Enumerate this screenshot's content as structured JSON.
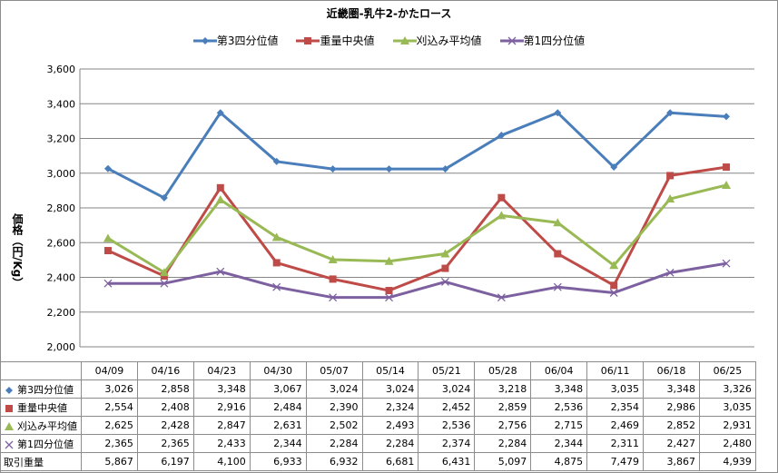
{
  "chart_data": {
    "type": "line",
    "title": "近畿圏-乳牛2-かたロース",
    "ylabel": "価格（円/Kg）",
    "xlabel": "",
    "ylim": [
      2000,
      3600
    ],
    "yticks": [
      "2,000",
      "2,200",
      "2,400",
      "2,600",
      "2,800",
      "3,000",
      "3,200",
      "3,400",
      "3,600"
    ],
    "grid": true,
    "legend_position": "top",
    "categories": [
      "04/09",
      "04/16",
      "04/23",
      "04/30",
      "05/07",
      "05/14",
      "05/21",
      "05/28",
      "06/04",
      "06/11",
      "06/18",
      "06/25"
    ],
    "series": [
      {
        "name": "第3四分位値",
        "color": "#4a7ebb",
        "marker": "diamond",
        "values": [
          3026,
          2858,
          3348,
          3067,
          3024,
          3024,
          3024,
          3218,
          3348,
          3035,
          3348,
          3326
        ],
        "labels": [
          "3,026",
          "2,858",
          "3,348",
          "3,067",
          "3,024",
          "3,024",
          "3,024",
          "3,218",
          "3,348",
          "3,035",
          "3,348",
          "3,326"
        ]
      },
      {
        "name": "重量中央値",
        "color": "#be4b48",
        "marker": "square",
        "values": [
          2554,
          2408,
          2916,
          2484,
          2390,
          2324,
          2452,
          2859,
          2536,
          2354,
          2986,
          3035
        ],
        "labels": [
          "2,554",
          "2,408",
          "2,916",
          "2,484",
          "2,390",
          "2,324",
          "2,452",
          "2,859",
          "2,536",
          "2,354",
          "2,986",
          "3,035"
        ]
      },
      {
        "name": "刈込み平均値",
        "color": "#98b954",
        "marker": "triangle",
        "values": [
          2625,
          2428,
          2847,
          2631,
          2502,
          2493,
          2536,
          2756,
          2715,
          2469,
          2852,
          2931
        ],
        "labels": [
          "2,625",
          "2,428",
          "2,847",
          "2,631",
          "2,502",
          "2,493",
          "2,536",
          "2,756",
          "2,715",
          "2,469",
          "2,852",
          "2,931"
        ]
      },
      {
        "name": "第1四分位値",
        "color": "#7d60a0",
        "marker": "x",
        "values": [
          2365,
          2365,
          2433,
          2344,
          2284,
          2284,
          2374,
          2284,
          2344,
          2311,
          2427,
          2480
        ],
        "labels": [
          "2,365",
          "2,365",
          "2,433",
          "2,344",
          "2,284",
          "2,284",
          "2,374",
          "2,284",
          "2,344",
          "2,311",
          "2,427",
          "2,480"
        ]
      }
    ],
    "table_extra_row": {
      "name": "取引重量",
      "labels": [
        "5,867",
        "6,197",
        "4,100",
        "6,933",
        "6,932",
        "6,681",
        "6,431",
        "5,097",
        "4,875",
        "7,479",
        "3,867",
        "4,939"
      ]
    }
  }
}
